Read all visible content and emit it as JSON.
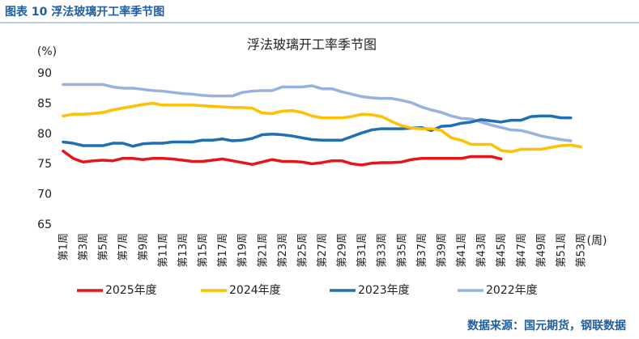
{
  "chart_data": {
    "type": "line",
    "header": "图表 10 浮法玻璃开工率季节图",
    "title": "浮法玻璃开工率季节图",
    "ylabel": "(%)",
    "xlabel": "(周)",
    "source": "数据来源：国元期货，钢联数据",
    "categories": [
      "第1周",
      null,
      "第3周",
      null,
      "第5周",
      null,
      "第7周",
      null,
      "第9周",
      null,
      "第11周",
      null,
      "第13周",
      null,
      "第15周",
      null,
      "第17周",
      null,
      "第19周",
      null,
      "第21周",
      null,
      "第23周",
      null,
      "第25周",
      null,
      "第27周",
      null,
      "第29周",
      null,
      "第31周",
      null,
      "第33周",
      null,
      "第35周",
      null,
      "第37周",
      null,
      "第39周",
      null,
      "第41周",
      null,
      "第43周",
      null,
      "第45周",
      null,
      "第47周",
      null,
      "第49周",
      null,
      "第51周",
      null,
      "第53周"
    ],
    "ylim": [
      65,
      90
    ],
    "yticks": [
      65,
      70,
      75,
      80,
      85,
      90
    ],
    "grid": false,
    "series": [
      {
        "name": "2025年度",
        "color": "#e8141a",
        "values": [
          77.2,
          76.0,
          75.4,
          75.6,
          75.7,
          75.6,
          76.0,
          76.0,
          75.8,
          76.0,
          76.0,
          75.9,
          75.7,
          75.5,
          75.5,
          75.7,
          75.9,
          75.6,
          75.3,
          75.0,
          75.4,
          75.8,
          75.5,
          75.5,
          75.4,
          75.1,
          75.3,
          75.6,
          75.6,
          75.1,
          74.9,
          75.2,
          75.3,
          75.3,
          75.4,
          75.8,
          76.0,
          76.0,
          76.0,
          76.0,
          76.0,
          76.3,
          76.3,
          76.3,
          75.9,
          null,
          null,
          null,
          null,
          null,
          null,
          null,
          null
        ]
      },
      {
        "name": "2024年度",
        "color": "#ffc000",
        "values": [
          83.0,
          83.3,
          83.3,
          83.4,
          83.6,
          84.0,
          84.3,
          84.6,
          84.9,
          85.1,
          84.8,
          84.8,
          84.8,
          84.8,
          84.7,
          84.6,
          84.5,
          84.4,
          84.4,
          84.3,
          83.5,
          83.4,
          83.8,
          83.9,
          83.6,
          83.0,
          82.7,
          82.7,
          82.7,
          82.9,
          83.3,
          83.2,
          82.9,
          82.1,
          81.4,
          81.0,
          80.9,
          80.9,
          80.6,
          79.4,
          79.0,
          78.3,
          78.3,
          78.3,
          77.3,
          77.1,
          77.5,
          77.5,
          77.5,
          77.8,
          78.1,
          78.2,
          77.9
        ]
      },
      {
        "name": "2023年度",
        "color": "#1f6fb4",
        "values": [
          78.7,
          78.5,
          78.1,
          78.1,
          78.1,
          78.5,
          78.5,
          78.0,
          78.4,
          78.5,
          78.5,
          78.7,
          78.7,
          78.7,
          79.0,
          79.0,
          79.2,
          78.9,
          79.0,
          79.3,
          79.9,
          80.0,
          79.9,
          79.7,
          79.4,
          79.1,
          79.0,
          79.0,
          79.0,
          79.6,
          80.2,
          80.7,
          80.9,
          80.9,
          80.9,
          81.0,
          81.1,
          80.6,
          81.3,
          81.4,
          81.8,
          82.0,
          82.4,
          82.2,
          82.0,
          82.3,
          82.3,
          82.9,
          83.0,
          83.0,
          82.7,
          82.7,
          null
        ]
      },
      {
        "name": "2022年度",
        "color": "#97b1e0",
        "values": [
          88.2,
          88.2,
          88.2,
          88.2,
          88.2,
          87.8,
          87.6,
          87.6,
          87.4,
          87.2,
          87.1,
          86.9,
          86.7,
          86.6,
          86.4,
          86.3,
          86.3,
          86.3,
          86.9,
          87.1,
          87.2,
          87.2,
          87.8,
          87.8,
          87.8,
          88.0,
          87.5,
          87.5,
          87.0,
          86.6,
          86.2,
          86.0,
          85.9,
          85.9,
          85.6,
          85.2,
          84.5,
          84.0,
          83.6,
          83.0,
          82.6,
          82.5,
          82.0,
          81.5,
          81.1,
          80.7,
          80.6,
          80.2,
          79.7,
          79.4,
          79.1,
          78.9,
          null
        ]
      }
    ]
  }
}
